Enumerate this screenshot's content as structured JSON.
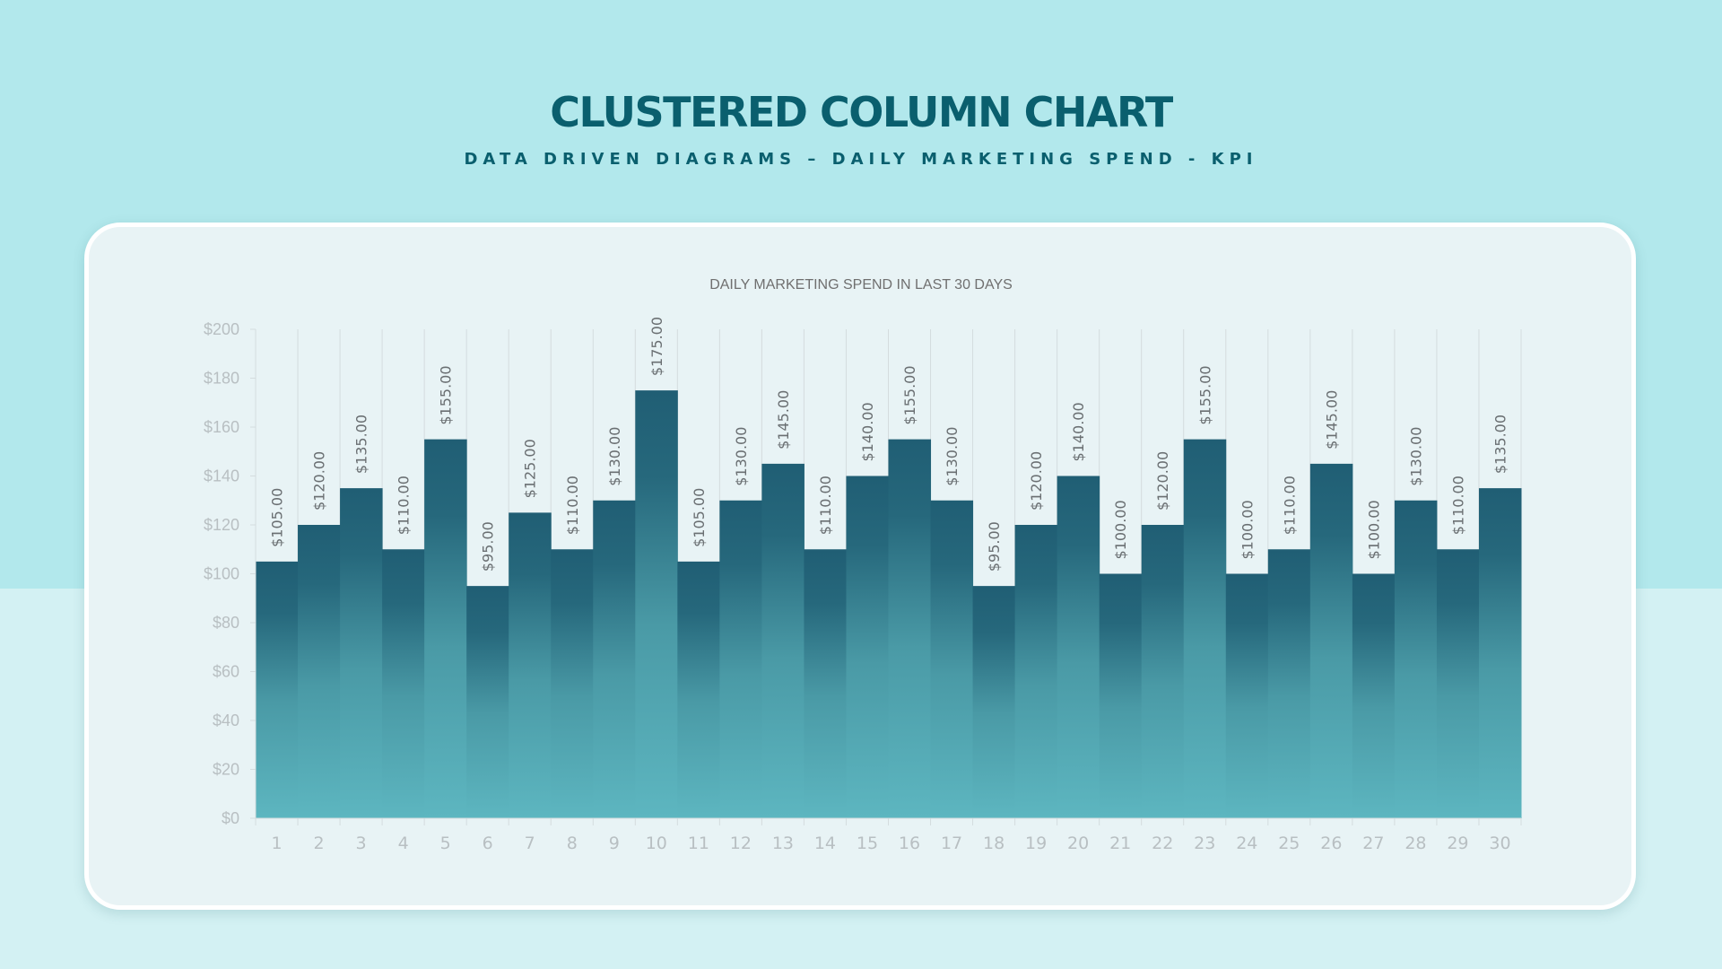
{
  "header": {
    "title": "CLUSTERED COLUMN CHART",
    "subtitle": "DATA DRIVEN DIAGRAMS – DAILY MARKETING SPEND - KPI"
  },
  "chart_data": {
    "type": "bar",
    "title": "DAILY MARKETING SPEND IN LAST 30 DAYS",
    "xlabel": "",
    "ylabel": "",
    "categories": [
      "1",
      "2",
      "3",
      "4",
      "5",
      "6",
      "7",
      "8",
      "9",
      "10",
      "11",
      "12",
      "13",
      "14",
      "15",
      "16",
      "17",
      "18",
      "19",
      "20",
      "21",
      "22",
      "23",
      "24",
      "25",
      "26",
      "27",
      "28",
      "29",
      "30"
    ],
    "values": [
      105,
      120,
      135,
      110,
      155,
      95,
      125,
      110,
      130,
      175,
      105,
      130,
      145,
      110,
      140,
      155,
      130,
      95,
      120,
      140,
      100,
      120,
      155,
      100,
      110,
      145,
      100,
      130,
      110,
      135
    ],
    "data_labels": [
      "$105.00",
      "$120.00",
      "$135.00",
      "$110.00",
      "$155.00",
      "$95.00",
      "$125.00",
      "$110.00",
      "$130.00",
      "$175.00",
      "$105.00",
      "$130.00",
      "$145.00",
      "$110.00",
      "$140.00",
      "$155.00",
      "$130.00",
      "$95.00",
      "$120.00",
      "$140.00",
      "$100.00",
      "$120.00",
      "$155.00",
      "$100.00",
      "$110.00",
      "$145.00",
      "$100.00",
      "$130.00",
      "$110.00",
      "$135.00"
    ],
    "ylim": [
      0,
      200
    ],
    "yticks": [
      "$0",
      "$20",
      "$40",
      "$60",
      "$80",
      "$100",
      "$120",
      "$140",
      "$160",
      "$180",
      "$200"
    ],
    "grid": "vertical",
    "legend": "none",
    "colors": {
      "bar_top": "#205e74",
      "bar_bottom": "#5db6c0",
      "title": "#0a5f6e"
    }
  }
}
